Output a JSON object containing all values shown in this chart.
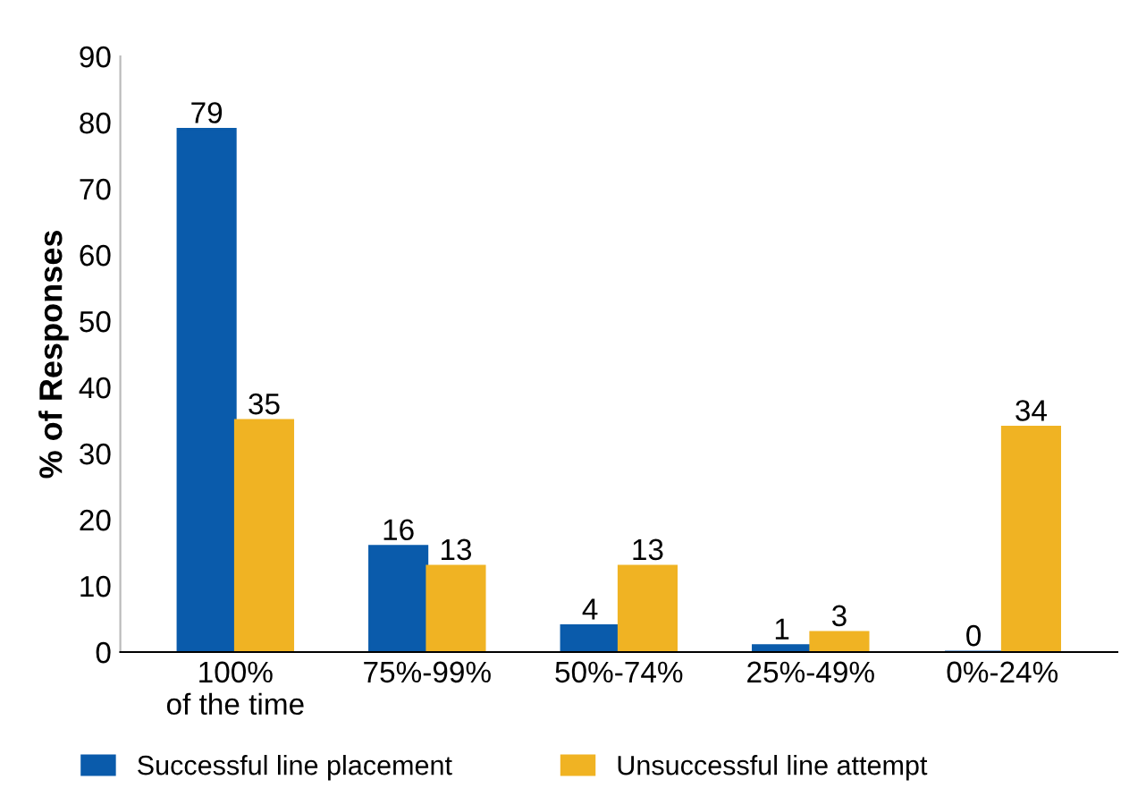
{
  "chart_data": {
    "type": "bar",
    "ylabel": "% of Responses",
    "categories": [
      "100%\nof the time",
      "75%-99%",
      "50%-74%",
      "25%-49%",
      "0%-24%"
    ],
    "series": [
      {
        "name": "Successful line placement",
        "color": "#0a5bab",
        "values": [
          79,
          16,
          4,
          1,
          0
        ]
      },
      {
        "name": "Unsuccessful line attempt",
        "color": "#f0b323",
        "values": [
          35,
          13,
          13,
          3,
          34
        ]
      }
    ],
    "ylim": [
      0,
      90
    ],
    "yticks": [
      0,
      10,
      20,
      30,
      40,
      50,
      60,
      70,
      80,
      90
    ],
    "data_labels": true,
    "grid": false,
    "legend": "bottom left"
  }
}
